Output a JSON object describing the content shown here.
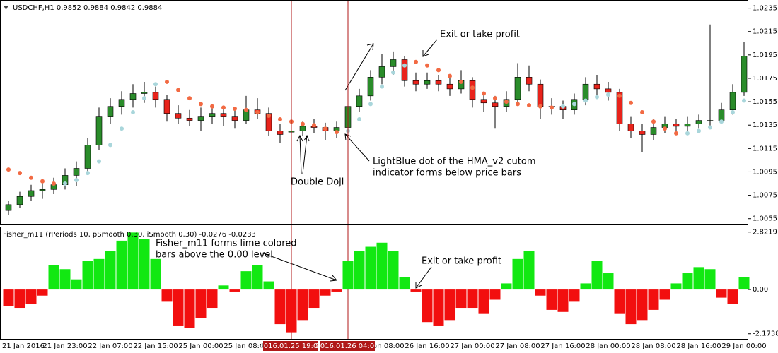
{
  "chart_data": [
    {
      "type": "candlestick",
      "title": "USDCHF,H1  0.9852 0.9884 0.9842 0.9884",
      "categories": [
        null,
        "21 Jan 2016",
        null,
        null,
        null,
        "21 Jan 23:00",
        null,
        null,
        null,
        "22 Jan 07:00",
        null,
        null,
        null,
        "22 Jan 15:00",
        null,
        null,
        null,
        "25 Jan 00:00",
        null,
        null,
        null,
        "25 Jan 08:00",
        null,
        null,
        null,
        "2016.01.25 19:00",
        null,
        null,
        null,
        null,
        "2016.01.26 04:00",
        null,
        null,
        "26 Jan 08:00",
        null,
        null,
        null,
        "26 Jan 16:00",
        null,
        null,
        null,
        "27 Jan 00:00",
        null,
        null,
        null,
        "27 Jan 08:00",
        null,
        null,
        null,
        "27 Jan 16:00",
        null,
        null,
        null,
        "28 Jan 00:00",
        null,
        null,
        null,
        "28 Jan 08:00",
        null,
        null,
        null,
        "28 Jan 16:00",
        null,
        null,
        null,
        "29 Jan 00:00"
      ],
      "open": [
        1.0062,
        1.0067,
        1.0074,
        1.0079,
        1.008,
        1.0084,
        1.0092,
        1.0098,
        1.0118,
        1.0142,
        1.0151,
        1.0157,
        1.0162,
        1.0163,
        1.0157,
        1.0145,
        1.0141,
        1.0139,
        1.0142,
        1.0145,
        1.0142,
        1.0139,
        1.0148,
        1.0145,
        1.013,
        1.0129,
        1.013,
        1.0134,
        1.0133,
        1.013,
        1.0133,
        1.0151,
        1.016,
        1.0176,
        1.0185,
        1.0191,
        1.0173,
        1.017,
        1.0173,
        1.017,
        1.0166,
        1.0173,
        1.0157,
        1.0154,
        1.0151,
        1.0157,
        1.0176,
        1.017,
        1.0151,
        1.0151,
        1.0148,
        1.0157,
        1.017,
        1.0166,
        1.0163,
        1.0136,
        1.013,
        1.0127,
        1.0133,
        1.0136,
        1.0134,
        1.0136,
        1.0139,
        1.0139,
        1.0148,
        1.0163
      ],
      "high": [
        1.007,
        1.0078,
        1.0084,
        1.0086,
        1.009,
        1.0098,
        1.0104,
        1.0124,
        1.015,
        1.0158,
        1.0164,
        1.017,
        1.0172,
        1.0168,
        1.0161,
        1.0152,
        1.0148,
        1.015,
        1.0152,
        1.015,
        1.0148,
        1.016,
        1.0158,
        1.015,
        1.0136,
        1.0136,
        1.0138,
        1.014,
        1.0137,
        1.0138,
        1.0156,
        1.0166,
        1.0182,
        1.0196,
        1.0198,
        1.0194,
        1.018,
        1.018,
        1.0178,
        1.0176,
        1.0182,
        1.0176,
        1.0162,
        1.016,
        1.0164,
        1.0188,
        1.0186,
        1.0174,
        1.0158,
        1.0156,
        1.0162,
        1.0176,
        1.0178,
        1.0172,
        1.0166,
        1.0142,
        1.0136,
        1.014,
        1.0142,
        1.014,
        1.0142,
        1.0144,
        1.0221,
        1.0154,
        1.017,
        1.0206
      ],
      "low": [
        1.0058,
        1.0064,
        1.007,
        1.0072,
        1.0076,
        1.008,
        1.0083,
        1.0094,
        1.0114,
        1.0136,
        1.0144,
        1.015,
        1.0154,
        1.015,
        1.0138,
        1.0136,
        1.0134,
        1.013,
        1.0136,
        1.0134,
        1.0132,
        1.0136,
        1.014,
        1.0126,
        1.012,
        1.0122,
        1.0126,
        1.0128,
        1.0122,
        1.0124,
        1.013,
        1.0146,
        1.0156,
        1.017,
        1.0178,
        1.0168,
        1.0164,
        1.0166,
        1.0164,
        1.016,
        1.0162,
        1.015,
        1.0146,
        1.0132,
        1.0146,
        1.0152,
        1.0164,
        1.014,
        1.0144,
        1.014,
        1.0144,
        1.0152,
        1.016,
        1.0156,
        1.013,
        1.0124,
        1.0112,
        1.0122,
        1.0128,
        1.0128,
        1.013,
        1.0132,
        1.0134,
        1.0136,
        1.0144,
        1.016
      ],
      "close": [
        1.0067,
        1.0074,
        1.0079,
        1.008,
        1.0084,
        1.0092,
        1.0098,
        1.0118,
        1.0142,
        1.0151,
        1.0157,
        1.0162,
        1.0163,
        1.0157,
        1.0145,
        1.0141,
        1.0139,
        1.0142,
        1.0145,
        1.0142,
        1.0139,
        1.0148,
        1.0145,
        1.013,
        1.0127,
        1.013,
        1.0134,
        1.0133,
        1.013,
        1.0133,
        1.0151,
        1.016,
        1.0176,
        1.0185,
        1.0191,
        1.0173,
        1.017,
        1.0173,
        1.017,
        1.0166,
        1.0173,
        1.0157,
        1.0154,
        1.0151,
        1.0157,
        1.0176,
        1.017,
        1.0151,
        1.0151,
        1.0148,
        1.0157,
        1.017,
        1.0166,
        1.0163,
        1.0136,
        1.013,
        1.0127,
        1.0133,
        1.0136,
        1.0134,
        1.0136,
        1.0139,
        1.0139,
        1.0148,
        1.0163,
        1.0194
      ],
      "up_color": "#2a8c2a",
      "down_color": "#e8231b",
      "dots": [
        {
          "color": "#a9d6db",
          "values": [
            null,
            null,
            null,
            null,
            null,
            1.0085,
            1.0088,
            1.0094,
            1.0104,
            1.0118,
            1.0132,
            1.0146,
            1.0158,
            1.017,
            null,
            null,
            null,
            null,
            null,
            null,
            null,
            null,
            null,
            null,
            null,
            null,
            null,
            null,
            null,
            null,
            1.013,
            1.014,
            1.0153,
            1.0168,
            1.018,
            1.0186,
            null,
            null,
            null,
            null,
            null,
            null,
            null,
            null,
            null,
            null,
            null,
            null,
            null,
            1.0151,
            1.0153,
            1.0156,
            1.0159,
            1.0161,
            null,
            null,
            null,
            null,
            null,
            null,
            1.0128,
            1.013,
            1.0133,
            1.0138,
            1.0146,
            1.0156
          ]
        },
        {
          "color": "#f26a43",
          "values": [
            1.0097,
            1.0094,
            1.009,
            1.0087,
            1.0085,
            null,
            null,
            null,
            null,
            null,
            null,
            null,
            null,
            null,
            1.0172,
            1.0165,
            1.0158,
            1.0153,
            1.0151,
            1.015,
            1.0149,
            1.0148,
            1.0146,
            1.0143,
            1.014,
            1.0138,
            1.0136,
            1.0135,
            1.0132,
            1.0129,
            null,
            null,
            null,
            null,
            null,
            null,
            1.0189,
            1.0186,
            1.0182,
            1.0177,
            1.0172,
            1.0167,
            1.0162,
            1.0158,
            1.0155,
            1.0153,
            1.0152,
            1.0151,
            1.015,
            null,
            null,
            null,
            null,
            null,
            1.016,
            1.0154,
            1.0146,
            1.0138,
            1.0132,
            1.0128,
            null,
            null,
            null,
            null,
            null,
            null
          ]
        }
      ],
      "cursor_color": "#b01818",
      "ylim": [
        1.005,
        1.0242
      ],
      "yticks": [
        1.0235,
        1.0215,
        1.0195,
        1.0175,
        1.0155,
        1.0135,
        1.0115,
        1.0095,
        1.0075,
        1.0055
      ],
      "annotations": [
        {
          "lines": [
            "Exit or take profit"
          ]
        },
        {
          "lines": [
            "LightBlue dot of the HMA_v2 cutom",
            "indicator forms below price bars"
          ]
        },
        {
          "lines": [
            "Double Doji"
          ]
        }
      ]
    },
    {
      "type": "histogram",
      "title": "Fisher_m11  (rPeriods 10, pSmooth 0.30, iSmooth 0.30)   -0.0276 -0.0233",
      "values": [
        -0.8,
        -0.9,
        -0.7,
        -0.3,
        1.2,
        1.0,
        0.5,
        1.4,
        1.5,
        1.9,
        2.4,
        2.8,
        2.5,
        1.5,
        -0.6,
        -1.8,
        -1.9,
        -1.4,
        -0.9,
        0.2,
        -0.1,
        0.9,
        1.2,
        0.4,
        -1.7,
        -2.1,
        -1.5,
        -0.9,
        -0.3,
        -0.1,
        1.4,
        1.9,
        2.1,
        2.3,
        1.9,
        0.6,
        -0.1,
        -1.6,
        -1.8,
        -1.5,
        -0.9,
        -0.9,
        -1.2,
        -0.5,
        0.3,
        1.5,
        1.9,
        -0.3,
        -1.0,
        -1.1,
        -0.6,
        0.3,
        1.4,
        0.8,
        -1.2,
        -1.7,
        -1.5,
        -1.0,
        -0.5,
        0.3,
        0.8,
        1.1,
        1.0,
        -0.4,
        -0.7,
        0.6
      ],
      "pos_color": "#12e812",
      "neg_color": "#f20f0f",
      "ylim": [
        -2.46,
        3.09
      ],
      "yticks": [
        2.8219,
        {
          "value": 0,
          "label": "0.00"
        },
        -2.1738
      ],
      "annotations": [
        {
          "lines": [
            "Fisher_m11 forms lime colored",
            "bars above the 0.00 level"
          ]
        },
        {
          "lines": [
            "Exit or take profit"
          ]
        }
      ]
    }
  ]
}
